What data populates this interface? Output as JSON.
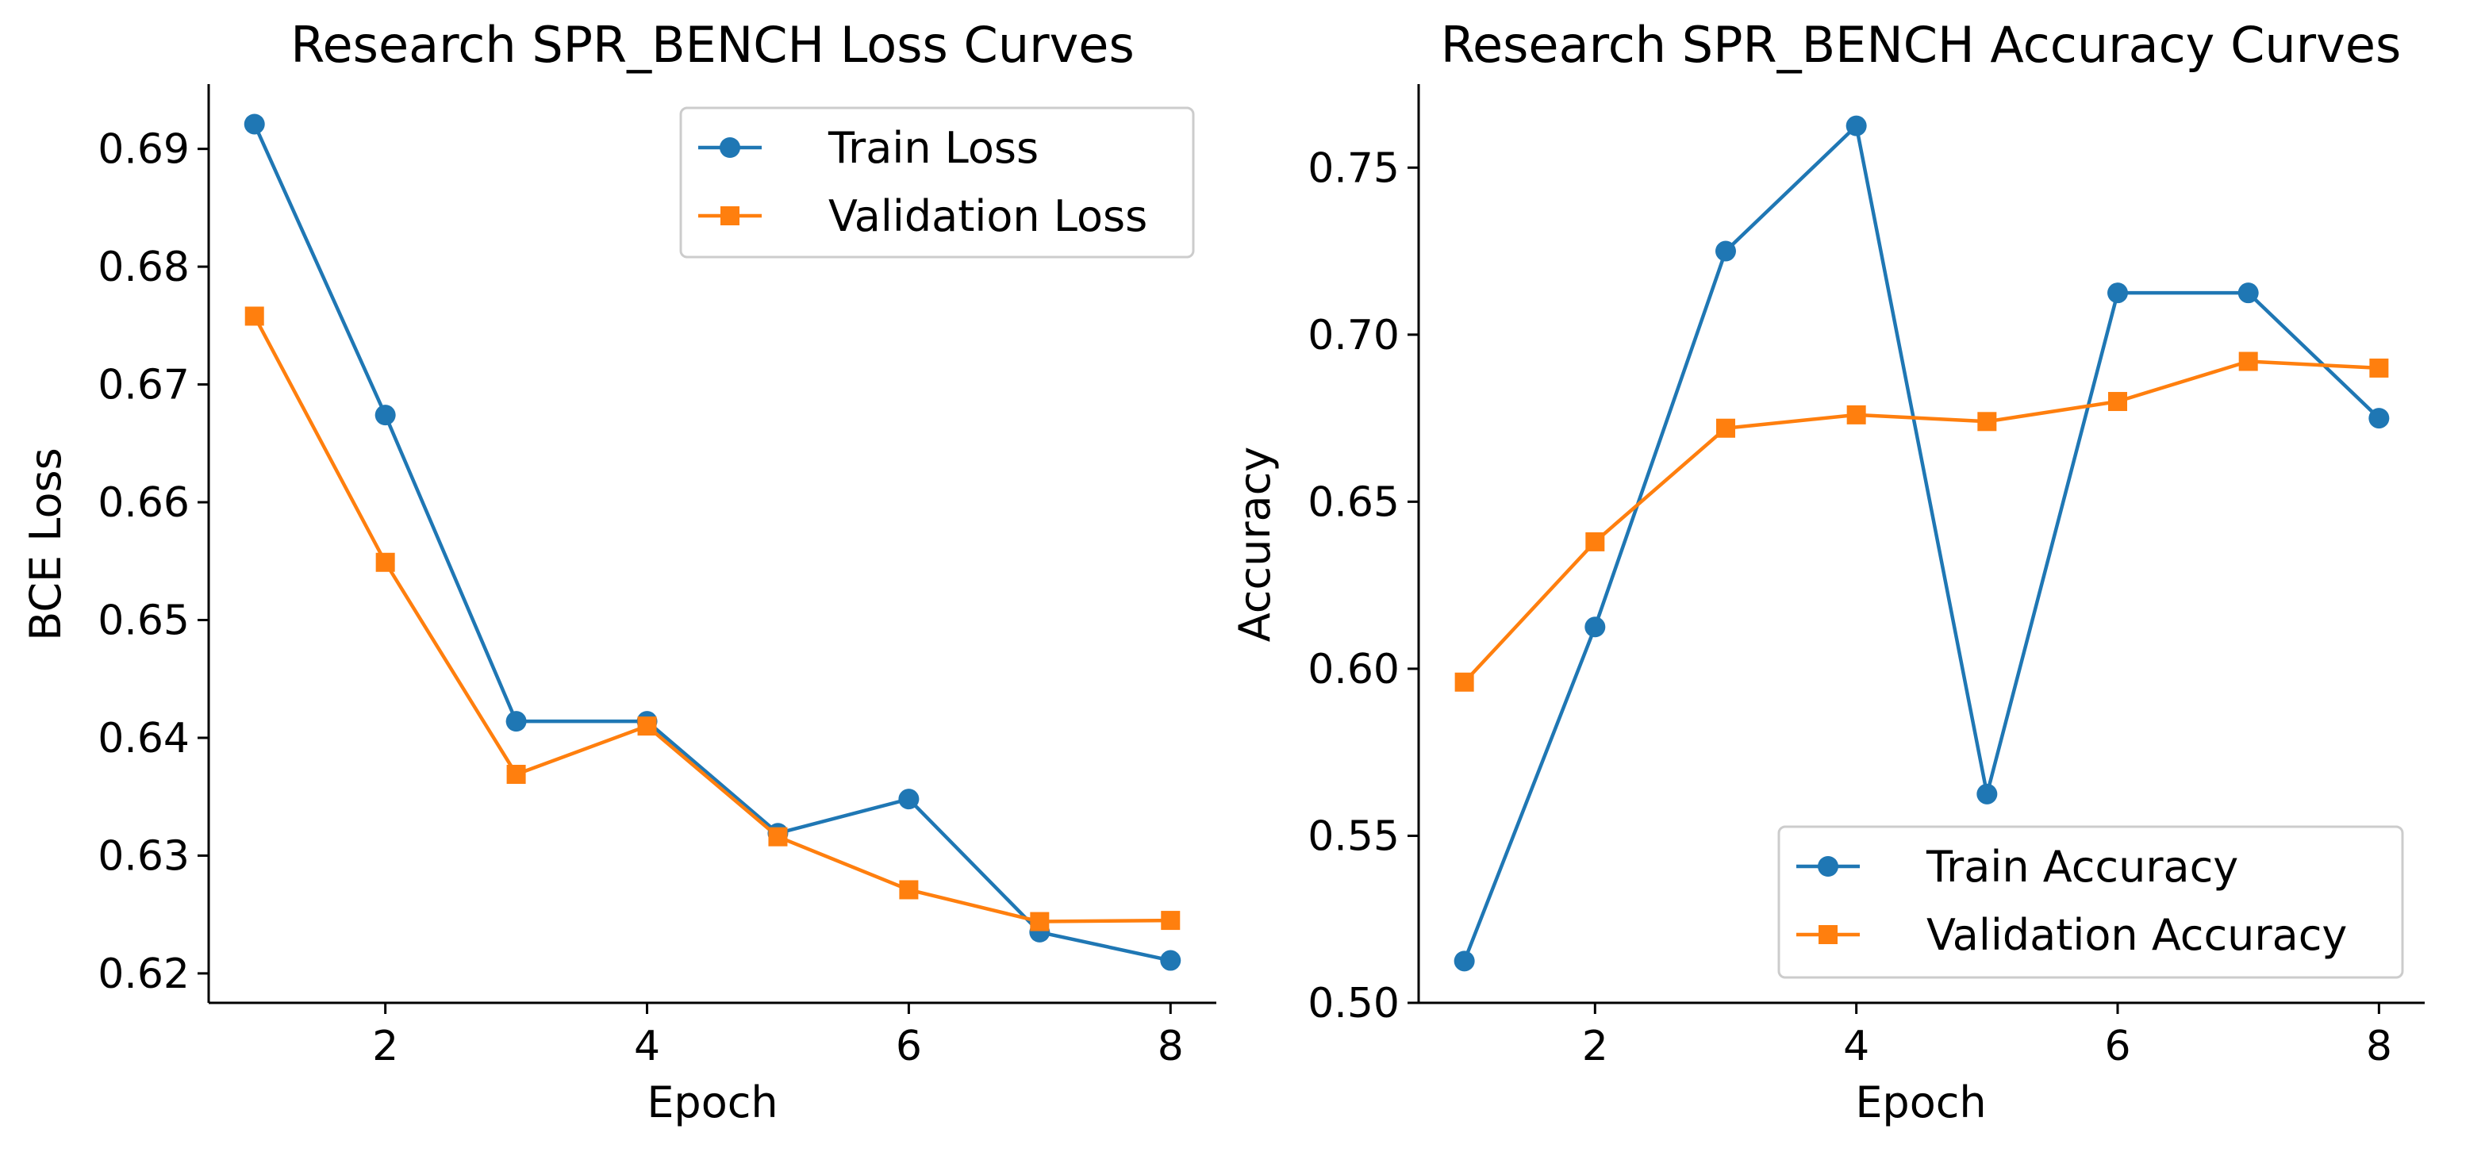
{
  "chart_data": [
    {
      "type": "line",
      "title": "Research SPR_BENCH Loss Curves",
      "xlabel": "Epoch",
      "ylabel": "BCE Loss",
      "x": [
        1,
        2,
        3,
        4,
        5,
        6,
        7,
        8
      ],
      "xticks": [
        2,
        4,
        6,
        8
      ],
      "xlim": [
        0.65,
        8.35
      ],
      "yticks": [
        0.62,
        0.63,
        0.64,
        0.65,
        0.66,
        0.67,
        0.68,
        0.69
      ],
      "ylim": [
        0.6175,
        0.6955
      ],
      "legend_position": "upper right",
      "grid": false,
      "series": [
        {
          "name": "Train Loss",
          "color": "#1f77b4",
          "marker": "circle",
          "values": [
            0.6921,
            0.6674,
            0.6414,
            0.6414,
            0.6319,
            0.6348,
            0.6235,
            0.6211
          ]
        },
        {
          "name": "Validation Loss",
          "color": "#ff7f0e",
          "marker": "square",
          "values": [
            0.6758,
            0.6549,
            0.6369,
            0.641,
            0.6316,
            0.6271,
            0.6244,
            0.6245
          ]
        }
      ]
    },
    {
      "type": "line",
      "title": "Research SPR_BENCH Accuracy Curves",
      "xlabel": "Epoch",
      "ylabel": "Accuracy",
      "x": [
        1,
        2,
        3,
        4,
        5,
        6,
        7,
        8
      ],
      "xticks": [
        2,
        4,
        6,
        8
      ],
      "xlim": [
        0.65,
        8.35
      ],
      "yticks": [
        0.5,
        0.55,
        0.6,
        0.65,
        0.7,
        0.75
      ],
      "ylim": [
        0.5,
        0.775
      ],
      "legend_position": "lower right",
      "grid": false,
      "series": [
        {
          "name": "Train Accuracy",
          "color": "#1f77b4",
          "marker": "circle",
          "values": [
            0.5125,
            0.6125,
            0.725,
            0.7625,
            0.5625,
            0.7125,
            0.7125,
            0.675
          ]
        },
        {
          "name": "Validation Accuracy",
          "color": "#ff7f0e",
          "marker": "square",
          "values": [
            0.596,
            0.638,
            0.672,
            0.676,
            0.674,
            0.68,
            0.692,
            0.69
          ]
        }
      ]
    }
  ]
}
